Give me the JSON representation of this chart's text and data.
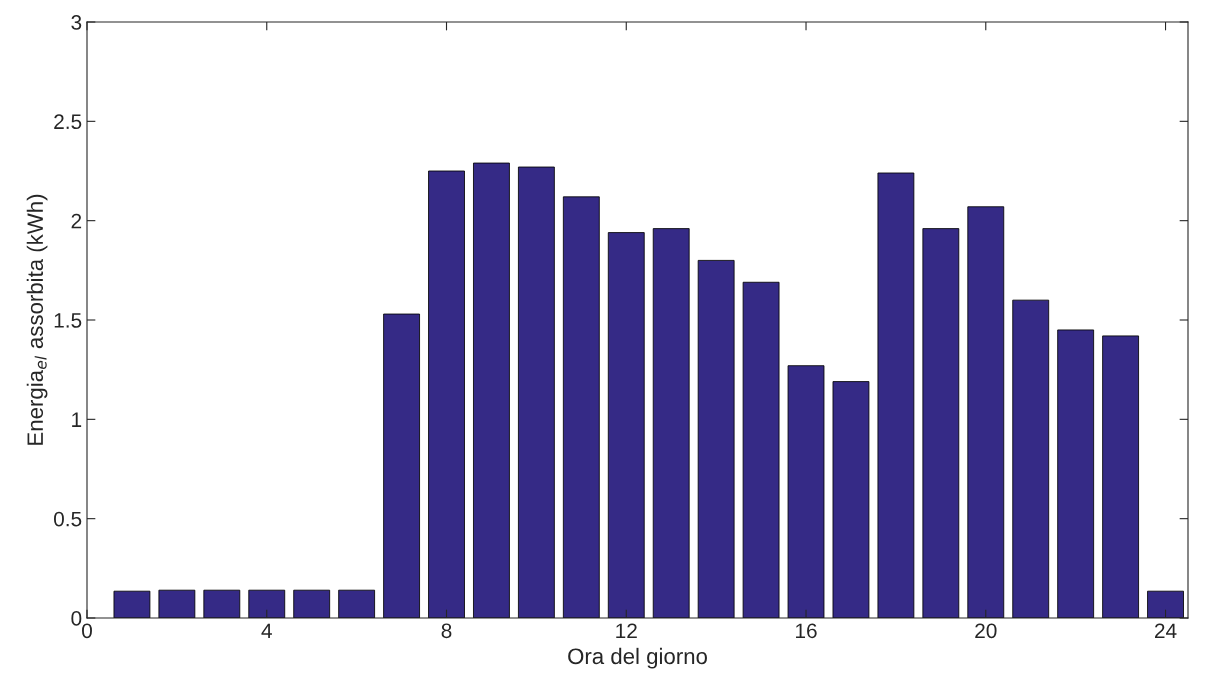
{
  "chart_data": {
    "type": "bar",
    "xlabel": "Ora del giorno",
    "ylabel": "Energia$_{el}$ assorbita (kWh)",
    "x": [
      1,
      2,
      3,
      4,
      5,
      6,
      7,
      8,
      9,
      10,
      11,
      12,
      13,
      14,
      15,
      16,
      17,
      18,
      19,
      20,
      21,
      22,
      23,
      24
    ],
    "values": [
      0.135,
      0.14,
      0.14,
      0.14,
      0.14,
      0.14,
      1.53,
      2.25,
      2.29,
      2.27,
      2.12,
      1.94,
      1.96,
      1.8,
      1.69,
      1.27,
      1.19,
      2.24,
      1.96,
      2.07,
      1.6,
      1.45,
      1.42,
      0.135
    ],
    "color": "#352a86",
    "xlim": [
      0,
      24.5
    ],
    "xticks": [
      0,
      4,
      8,
      12,
      16,
      20,
      24
    ],
    "ylim": [
      0,
      3
    ],
    "yticks": [
      0,
      0.5,
      1,
      1.5,
      2,
      2.5,
      3
    ],
    "grid": false
  }
}
